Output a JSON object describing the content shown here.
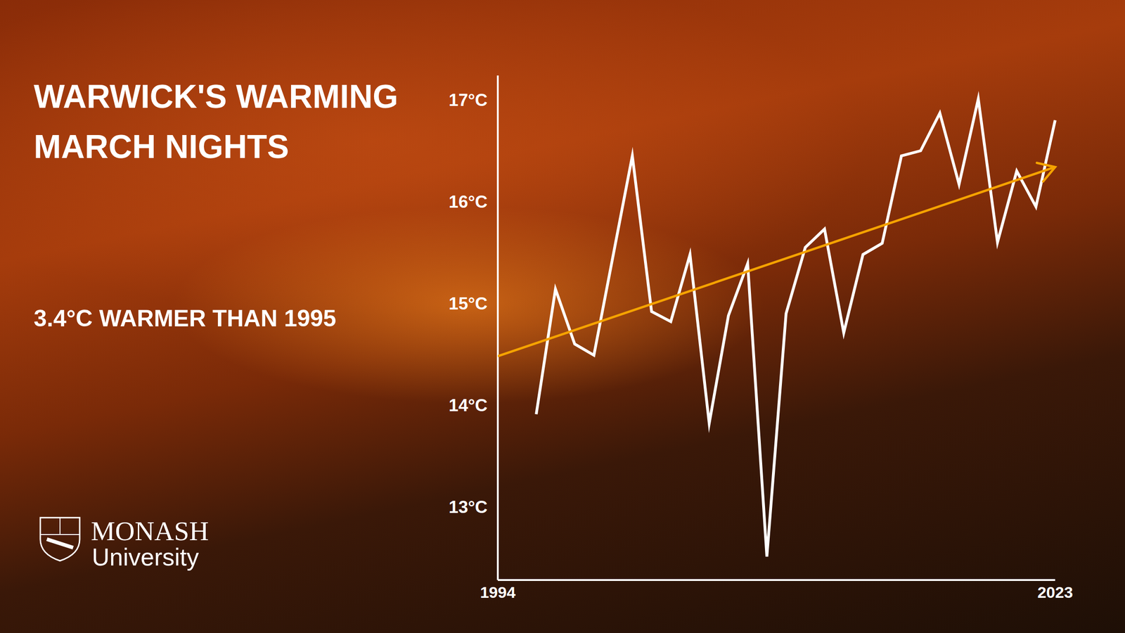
{
  "chart_data": {
    "type": "line",
    "title": "WARWICK'S WARMING MARCH NIGHTS",
    "subtitle": "3.4°C WARMER THAN 1995",
    "x": [
      1996,
      1997,
      1998,
      1999,
      2001,
      2002,
      2003,
      2004,
      2005,
      2006,
      2007,
      2008,
      2009,
      2010,
      2011,
      2012,
      2013,
      2014,
      2015,
      2016,
      2017,
      2018,
      2019,
      2020,
      2021,
      2022,
      2023
    ],
    "series": [
      {
        "color": "#ffffff",
        "values": [
          13.91,
          15.14,
          14.6,
          14.49,
          16.45,
          14.92,
          14.82,
          15.48,
          13.82,
          14.88,
          15.39,
          12.51,
          14.9,
          15.55,
          15.73,
          14.71,
          15.48,
          15.59,
          16.45,
          16.5,
          16.87,
          16.17,
          17.01,
          15.6,
          16.3,
          15.95,
          16.8
        ]
      }
    ],
    "trend": {
      "x": [
        1994,
        2023
      ],
      "values": [
        14.48,
        16.34
      ],
      "color": "#f5a300"
    },
    "xlim": [
      1994,
      2023
    ],
    "xticks": [
      1994,
      2023
    ],
    "ylim": [
      12.28,
      17.24
    ],
    "yticks": [
      {
        "value": 13,
        "label": "13°C"
      },
      {
        "value": 14,
        "label": "14°C"
      },
      {
        "value": 15,
        "label": "15°C"
      },
      {
        "value": 16,
        "label": "16°C"
      },
      {
        "value": 17,
        "label": "17°C"
      }
    ],
    "grid": false
  },
  "logo": {
    "name": "MONASH",
    "subtitle": "University"
  }
}
